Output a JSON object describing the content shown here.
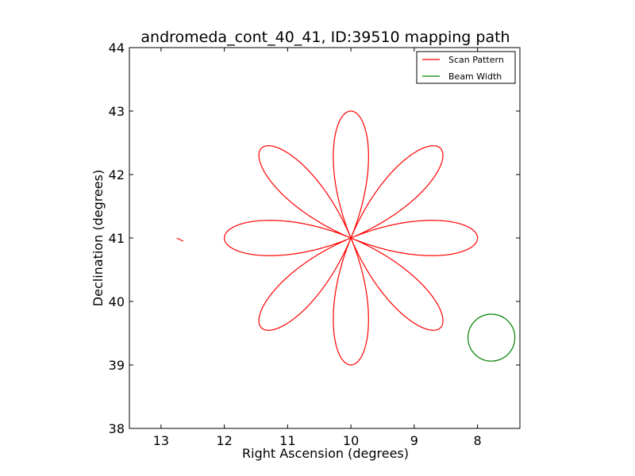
{
  "chart_data": {
    "type": "line",
    "title": "andromeda_cont_40_41, ID:39510 mapping path",
    "xlabel": "Right Ascension (degrees)",
    "ylabel": "Declination (degrees)",
    "xlim": [
      13.5,
      7.33
    ],
    "ylim": [
      38,
      44
    ],
    "x_inverted": true,
    "xticks": [
      13,
      12,
      11,
      10,
      9,
      8
    ],
    "yticks": [
      38,
      39,
      40,
      41,
      42,
      43,
      44
    ],
    "xtick_labels": [
      "13",
      "12",
      "11",
      "10",
      "9",
      "8"
    ],
    "ytick_labels": [
      "38",
      "39",
      "40",
      "41",
      "42",
      "43",
      "44"
    ],
    "grid": false,
    "legend_position": "top-right",
    "legend": [
      "Scan Pattern",
      "Beam Width"
    ],
    "series": [
      {
        "name": "Scan Pattern",
        "color": "#ff0000",
        "shape": "rose curve, 8 petals",
        "center": [
          10.0,
          41.0
        ],
        "petal_radius_deg": 2.0,
        "petal_angles_deg": [
          0,
          45,
          90,
          135,
          180,
          225,
          270,
          315
        ],
        "start_point": [
          12.65,
          40.95
        ],
        "end_point": [
          12.75,
          41.0
        ]
      },
      {
        "name": "Beam Width",
        "color": "#008000",
        "shape": "circle",
        "center": [
          7.78,
          39.43
        ],
        "radius_deg": 0.37
      }
    ]
  }
}
